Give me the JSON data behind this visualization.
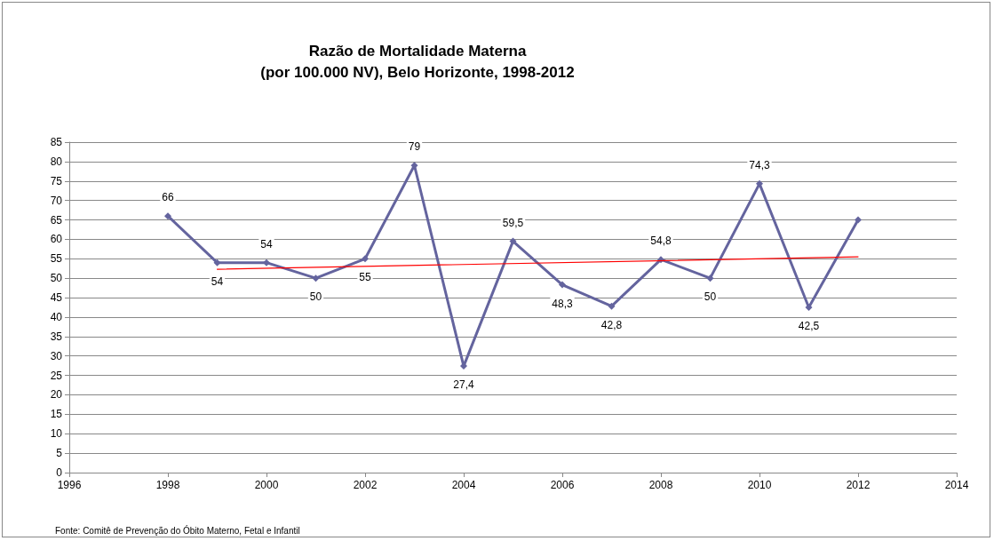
{
  "chart_data": {
    "type": "line",
    "title": "Razão de Mortalidade Materna\n(por 100.000 NV), Belo Horizonte, 1998-2012",
    "x": [
      1998,
      1999,
      2000,
      2001,
      2002,
      2003,
      2004,
      2005,
      2006,
      2007,
      2008,
      2009,
      2010,
      2011,
      2012
    ],
    "series": [
      {
        "color": "#64649e",
        "values": [
          66,
          54,
          54,
          50,
          55,
          79,
          27.4,
          59.5,
          48.3,
          42.8,
          54.8,
          50,
          74.3,
          42.5,
          65
        ],
        "value_labels": [
          "66",
          "54",
          "54",
          "50",
          "55",
          "79",
          "27,4",
          "59,5",
          "48,3",
          "42,8",
          "54,8",
          "50",
          "74,3",
          "42,5",
          null
        ],
        "marker": "diamond"
      },
      {
        "type": "line",
        "color": "#ff0000",
        "x": [
          1999,
          2012
        ],
        "values": [
          52.3,
          55.5
        ],
        "marker": "none"
      }
    ],
    "xlim": [
      1996,
      2014
    ],
    "xticks": [
      1996,
      1998,
      2000,
      2002,
      2004,
      2006,
      2008,
      2010,
      2012,
      2014
    ],
    "ylim": [
      0,
      85
    ],
    "yticks": [
      0,
      5,
      10,
      15,
      20,
      25,
      30,
      35,
      40,
      45,
      50,
      55,
      60,
      65,
      70,
      75,
      80,
      85
    ],
    "grid": "y",
    "annotations": [
      "Fonte: Comitê de Prevenção do Óbito Materno, Fetal e Infantil"
    ]
  }
}
